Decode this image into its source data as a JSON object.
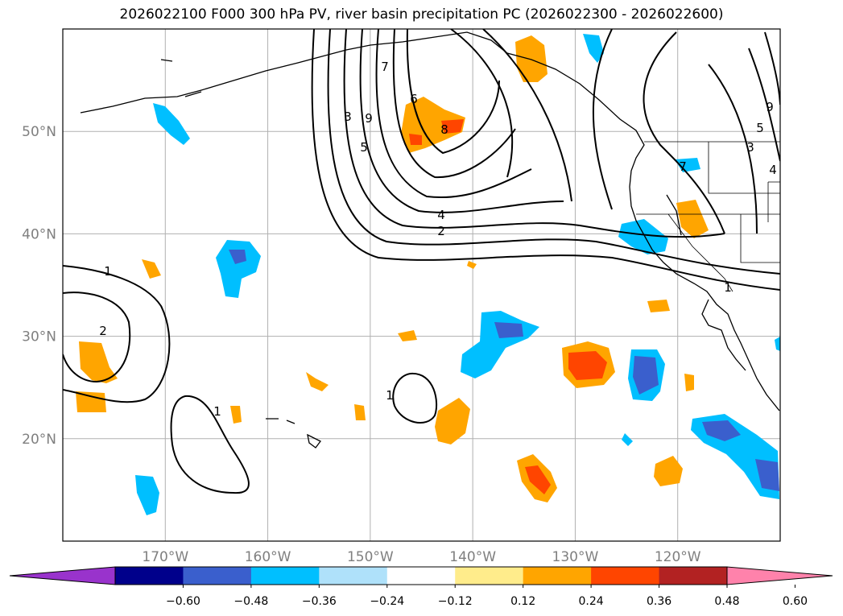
{
  "title": "2026022100 F000 300 hPa PV, river basin precipitation PC (2026022300 - 2026022600)",
  "map": {
    "lat_labels": [
      {
        "text": "50°N",
        "lat": 50
      },
      {
        "text": "40°N",
        "lat": 40
      },
      {
        "text": "30°N",
        "lat": 30
      },
      {
        "text": "20°N",
        "lat": 20
      }
    ],
    "lon_labels": [
      {
        "text": "170°W",
        "lon": -170
      },
      {
        "text": "160°W",
        "lon": -160
      },
      {
        "text": "150°W",
        "lon": -150
      },
      {
        "text": "140°W",
        "lon": -140
      },
      {
        "text": "130°W",
        "lon": -130
      },
      {
        "text": "120°W",
        "lon": -120
      }
    ],
    "lon_range": [
      -180,
      -110
    ],
    "lat_range": [
      10,
      60
    ],
    "gridlines": true
  },
  "contour_labels": [
    "7",
    "9",
    "3",
    "6",
    "5",
    "8",
    "4",
    "2",
    "1",
    "2",
    "1",
    "1",
    "1",
    "9",
    "5",
    "3",
    "4",
    "7"
  ],
  "colorbar": {
    "colors": [
      "#9933cc",
      "#00008b",
      "#3a5fcd",
      "#00bfff",
      "#afe1fa",
      "#ffffff",
      "#ffec8b",
      "#ffa500",
      "#ff4500",
      "#b22222",
      "#ff82ab"
    ],
    "tick_labels": [
      "−0.60",
      "−0.48",
      "−0.36",
      "−0.24",
      "−0.12",
      "0.12",
      "0.24",
      "0.36",
      "0.48",
      "0.60"
    ]
  }
}
